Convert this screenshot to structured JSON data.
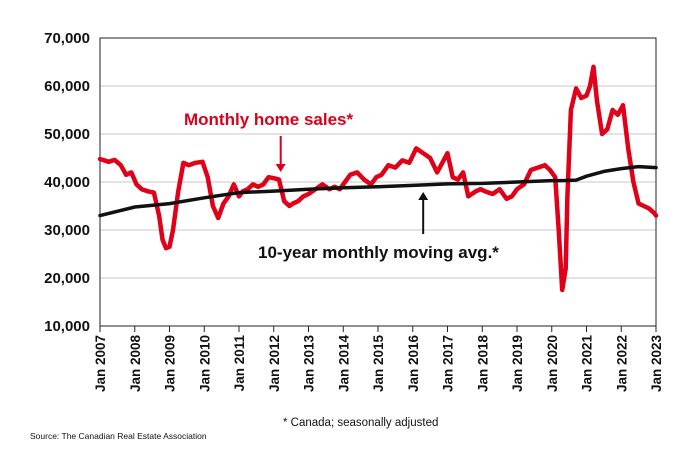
{
  "chart_data": {
    "type": "line",
    "title": "",
    "xlabel": "",
    "ylabel": "",
    "ylim": [
      10000,
      70000
    ],
    "xlim": [
      2007.0,
      2023.0
    ],
    "grid": true,
    "y_ticks": [
      10000,
      20000,
      30000,
      40000,
      50000,
      60000,
      70000
    ],
    "y_tick_labels": [
      "10,000",
      "20,000",
      "30,000",
      "40,000",
      "50,000",
      "60,000",
      "70,000"
    ],
    "x_tick_labels": [
      "Jan 2007",
      "Jan 2008",
      "Jan 2009",
      "Jan 2010",
      "Jan 2011",
      "Jan 2012",
      "Jan 2013",
      "Jan 2014",
      "Jan 2015",
      "Jan 2016",
      "Jan 2017",
      "Jan 2018",
      "Jan 2019",
      "Jan 2020",
      "Jan 2021",
      "Jan 2022",
      "Jan 2023"
    ],
    "series": [
      {
        "name": "Monthly home sales*",
        "color": "#e00018",
        "x": [
          2007.0,
          2007.25,
          2007.42,
          2007.6,
          2007.75,
          2007.9,
          2008.05,
          2008.2,
          2008.4,
          2008.55,
          2008.7,
          2008.8,
          2008.9,
          2009.0,
          2009.1,
          2009.25,
          2009.4,
          2009.55,
          2009.75,
          2009.95,
          2010.1,
          2010.25,
          2010.4,
          2010.55,
          2010.7,
          2010.85,
          2011.0,
          2011.1,
          2011.25,
          2011.4,
          2011.55,
          2011.7,
          2011.85,
          2012.0,
          2012.15,
          2012.3,
          2012.45,
          2012.55,
          2012.7,
          2012.85,
          2013.0,
          2013.2,
          2013.4,
          2013.6,
          2013.75,
          2013.9,
          2014.05,
          2014.2,
          2014.4,
          2014.6,
          2014.8,
          2014.95,
          2015.1,
          2015.3,
          2015.5,
          2015.7,
          2015.9,
          2016.1,
          2016.3,
          2016.5,
          2016.7,
          2016.85,
          2017.0,
          2017.15,
          2017.3,
          2017.45,
          2017.6,
          2017.8,
          2017.95,
          2018.1,
          2018.3,
          2018.5,
          2018.7,
          2018.85,
          2019.0,
          2019.2,
          2019.4,
          2019.6,
          2019.8,
          2019.95,
          2020.1,
          2020.2,
          2020.3,
          2020.4,
          2020.45,
          2020.55,
          2020.7,
          2020.85,
          2021.0,
          2021.1,
          2021.2,
          2021.3,
          2021.45,
          2021.6,
          2021.75,
          2021.9,
          2022.05,
          2022.2,
          2022.35,
          2022.5,
          2022.65,
          2022.8,
          2022.95,
          2023.0
        ],
        "values": [
          44800,
          44200,
          44600,
          43500,
          41500,
          42000,
          39500,
          38500,
          38000,
          37800,
          33000,
          28000,
          26200,
          26500,
          30000,
          38000,
          44000,
          43500,
          44000,
          44200,
          41000,
          35000,
          32500,
          35500,
          37000,
          39500,
          37000,
          38000,
          38500,
          39500,
          39000,
          39500,
          41000,
          40800,
          40500,
          36000,
          35000,
          35500,
          36000,
          37000,
          37500,
          38500,
          39500,
          38500,
          39000,
          38500,
          40000,
          41500,
          42000,
          40500,
          39500,
          41000,
          41500,
          43500,
          43000,
          44500,
          44000,
          47000,
          46000,
          45000,
          42000,
          44000,
          46000,
          41000,
          40500,
          42000,
          37000,
          38000,
          38500,
          38000,
          37500,
          38500,
          36500,
          37000,
          38500,
          39500,
          42500,
          43000,
          43500,
          42500,
          41000,
          30000,
          17500,
          22000,
          37000,
          55000,
          59500,
          57500,
          58000,
          60000,
          64000,
          57000,
          50000,
          51000,
          55000,
          54000,
          56000,
          47000,
          40000,
          35500,
          35000,
          34500,
          33500,
          33000
        ]
      },
      {
        "name": "10-year monthly moving avg.*",
        "color": "#111111",
        "x": [
          2007.0,
          2008.0,
          2009.0,
          2010.0,
          2011.0,
          2012.0,
          2013.0,
          2014.0,
          2015.0,
          2016.0,
          2017.0,
          2018.0,
          2019.0,
          2020.0,
          2020.3,
          2020.7,
          2021.0,
          2021.5,
          2022.0,
          2022.5,
          2023.0
        ],
        "values": [
          33000,
          34800,
          35500,
          36700,
          37800,
          38100,
          38500,
          38800,
          39000,
          39300,
          39600,
          39700,
          40000,
          40300,
          40300,
          40400,
          41200,
          42200,
          42800,
          43200,
          43000
        ]
      }
    ],
    "annotations": [
      {
        "text": "Monthly home sales*",
        "series": "Monthly home sales*",
        "arrow_to_x": 2012.2
      },
      {
        "text": "10-year monthly moving avg.*",
        "series": "10-year monthly moving avg.*",
        "arrow_to_x": 2016.3
      }
    ]
  },
  "footnote": "* Canada; seasonally adjusted",
  "source": "Source: The Canadian Real Estate Association"
}
